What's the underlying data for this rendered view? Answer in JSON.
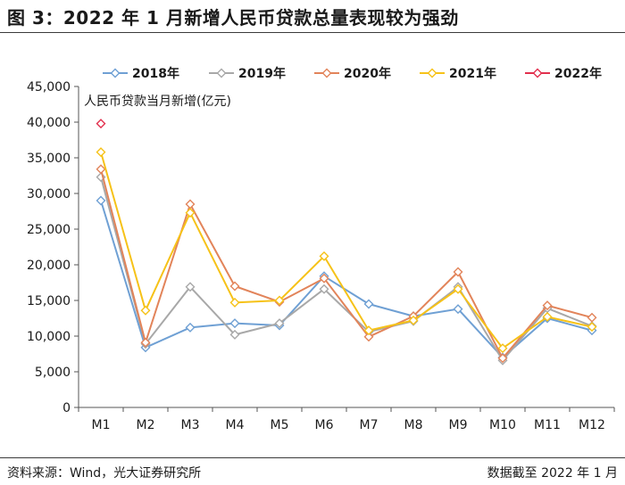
{
  "header": {
    "title": "图 3：2022 年 1 月新增人民币贷款总量表现较为强劲"
  },
  "footer": {
    "source": "资料来源：Wind，光大证券研究所",
    "cutoff": "数据截至 2022 年 1 月"
  },
  "chart_data": {
    "type": "line",
    "ylabel": "人民币贷款当月新增(亿元)",
    "ylim": [
      0,
      45000
    ],
    "yticks": [
      0,
      5000,
      10000,
      15000,
      20000,
      25000,
      30000,
      35000,
      40000,
      45000
    ],
    "ytick_labels": [
      "0",
      "5,000",
      "10,000",
      "15,000",
      "20,000",
      "25,000",
      "30,000",
      "35,000",
      "40,000",
      "45,000"
    ],
    "categories": [
      "M1",
      "M2",
      "M3",
      "M4",
      "M5",
      "M6",
      "M7",
      "M8",
      "M9",
      "M10",
      "M11",
      "M12"
    ],
    "legend_position": "top",
    "grid": false,
    "marker": "hollow-diamond",
    "series": [
      {
        "name": "2018年",
        "color": "#6fa0d4",
        "values": [
          29000,
          8400,
          11200,
          11800,
          11500,
          18400,
          14500,
          12800,
          13800,
          7000,
          12500,
          10800
        ]
      },
      {
        "name": "2019年",
        "color": "#a8a8a8",
        "values": [
          32300,
          8900,
          16900,
          10200,
          11800,
          16600,
          10600,
          12100,
          16900,
          6600,
          13900,
          11400
        ]
      },
      {
        "name": "2020年",
        "color": "#e2845a",
        "values": [
          33400,
          9100,
          28500,
          17000,
          14800,
          18100,
          9900,
          12800,
          19000,
          6900,
          14300,
          12600
        ]
      },
      {
        "name": "2021年",
        "color": "#f6c218",
        "values": [
          35800,
          13600,
          27300,
          14700,
          15000,
          21200,
          10800,
          12200,
          16600,
          8300,
          12700,
          11300
        ]
      },
      {
        "name": "2022年",
        "color": "#e2304e",
        "values": [
          39800,
          null,
          null,
          null,
          null,
          null,
          null,
          null,
          null,
          null,
          null,
          null
        ]
      }
    ]
  }
}
